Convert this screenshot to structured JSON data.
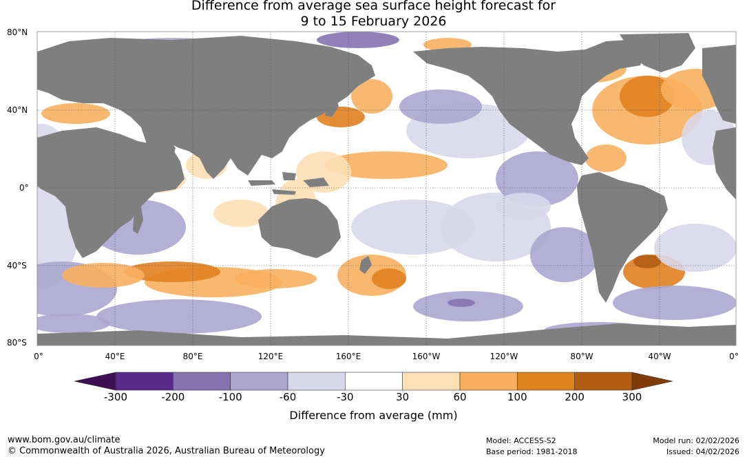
{
  "title": {
    "line1": "Difference from average sea surface height forecast for",
    "line2": "9 to 15 February 2026"
  },
  "map": {
    "lat_labels": [
      "80°N",
      "40°N",
      "0°",
      "40°S",
      "80°S"
    ],
    "lon_labels": [
      "0°",
      "40°E",
      "80°E",
      "120°E",
      "160°E",
      "160°W",
      "120°W",
      "80°W",
      "40°W",
      "0°"
    ]
  },
  "colorbar": {
    "thresholds": [
      "-300",
      "-200",
      "-100",
      "-60",
      "-30",
      "30",
      "60",
      "100",
      "200",
      "300"
    ],
    "colors": [
      "#3b0f52",
      "#5a2a8a",
      "#8474b0",
      "#aca6cf",
      "#d9d8ea",
      "#ffffff",
      "#fde0b6",
      "#f8b05f",
      "#e08220",
      "#b35d13",
      "#7f3c08"
    ],
    "label": "Difference from average (mm)"
  },
  "footer": {
    "url": "www.bom.gov.au/climate",
    "copyright": "© Commonwealth of Australia 2026, Australian Bureau of Meteorology",
    "model": "Model: ACCESS-S2",
    "base_period": "Base period: 1981-2018",
    "model_run": "Model run: 02/02/2026",
    "issued": "Issued: 04/02/2026"
  }
}
